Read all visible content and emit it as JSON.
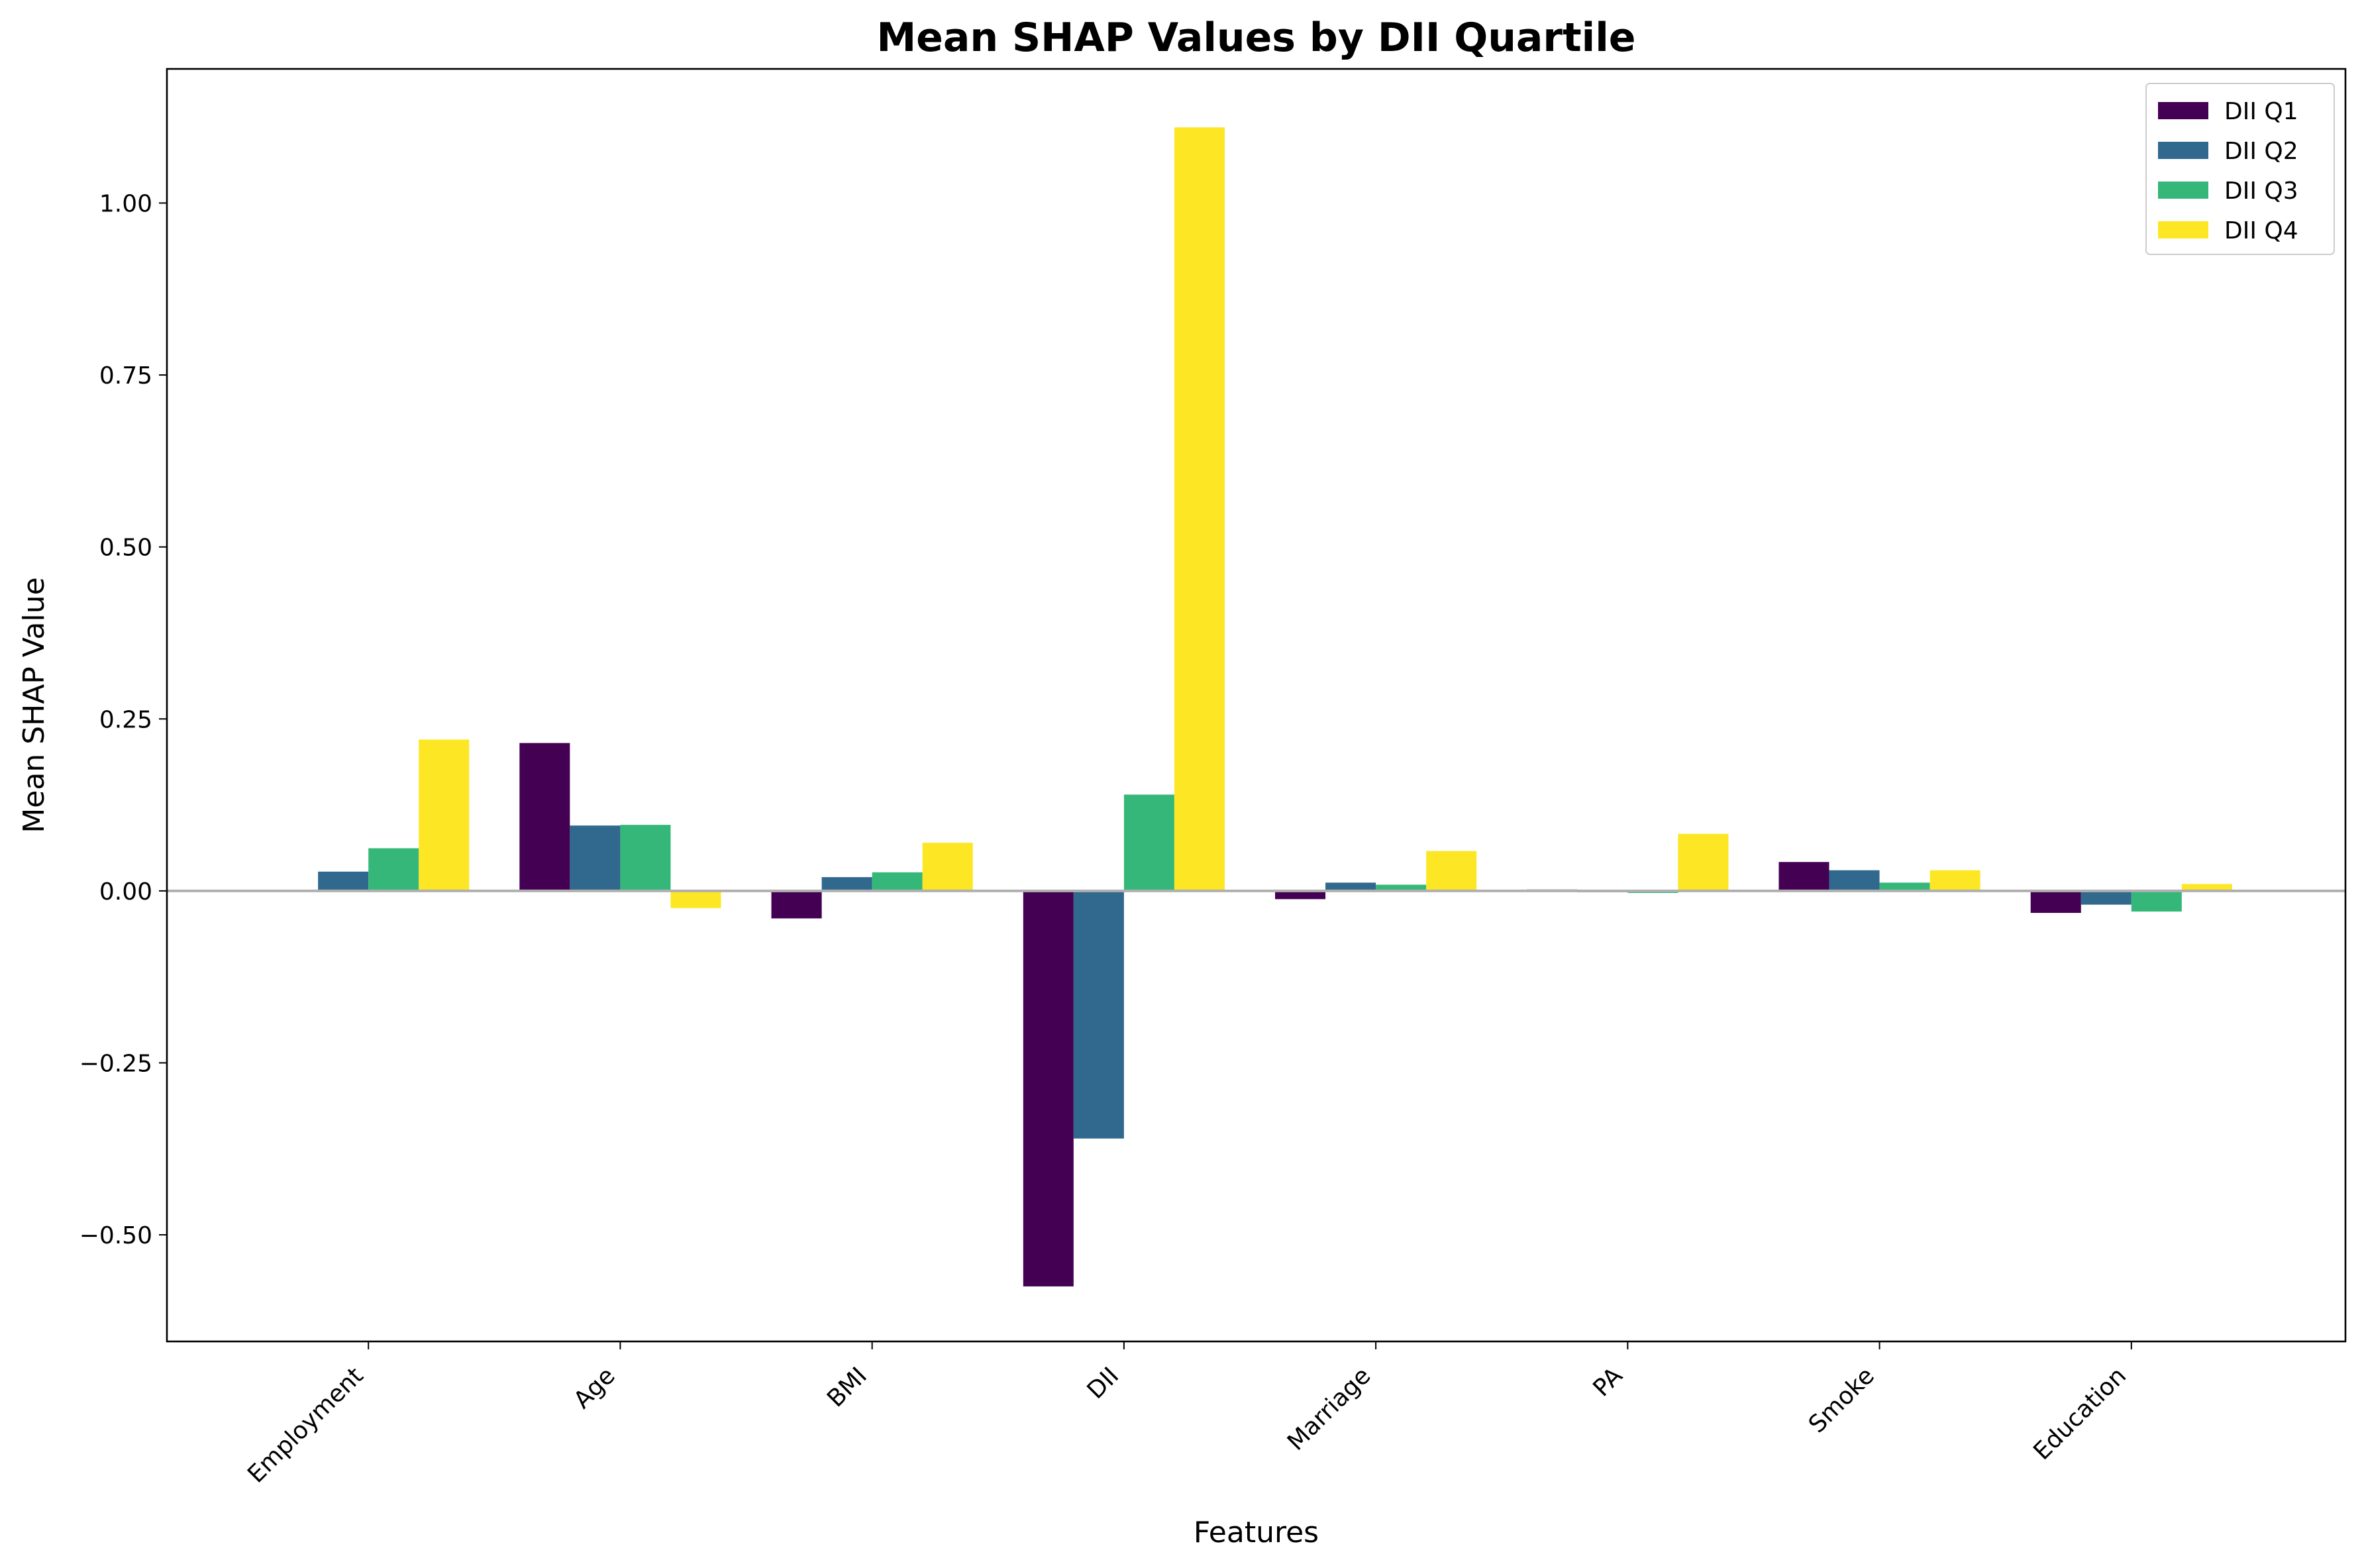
{
  "chart_data": {
    "type": "bar",
    "title": "Mean SHAP Values by DII Quartile",
    "xlabel": "Features",
    "ylabel": "Mean SHAP Value",
    "categories": [
      "Employment",
      "Age",
      "BMI",
      "DII",
      "Marriage",
      "PA",
      "Smoke",
      "Education"
    ],
    "series": [
      {
        "name": "DII Q1",
        "color": "#440154",
        "values": [
          0.0,
          0.215,
          -0.04,
          -0.575,
          -0.012,
          0.002,
          0.042,
          -0.032
        ]
      },
      {
        "name": "DII Q2",
        "color": "#31688e",
        "values": [
          0.028,
          0.095,
          0.02,
          -0.36,
          0.012,
          -0.002,
          0.03,
          -0.02
        ]
      },
      {
        "name": "DII Q3",
        "color": "#35b779",
        "values": [
          0.062,
          0.096,
          0.027,
          0.14,
          0.009,
          -0.003,
          0.012,
          -0.03
        ]
      },
      {
        "name": "DII Q4",
        "color": "#fde725",
        "values": [
          0.22,
          -0.025,
          0.07,
          1.11,
          0.058,
          0.083,
          0.03,
          0.01
        ]
      }
    ],
    "yticks": [
      -0.5,
      -0.25,
      0.0,
      0.25,
      0.5,
      0.75,
      1.0
    ],
    "ytick_labels": [
      "−0.50",
      "−0.25",
      "0.00",
      "0.25",
      "0.50",
      "0.75",
      "1.00"
    ],
    "ylim": [
      -0.655,
      1.195
    ],
    "grid": false,
    "legend_position": "top-right",
    "zero_line_color": "#b0b0b0"
  }
}
